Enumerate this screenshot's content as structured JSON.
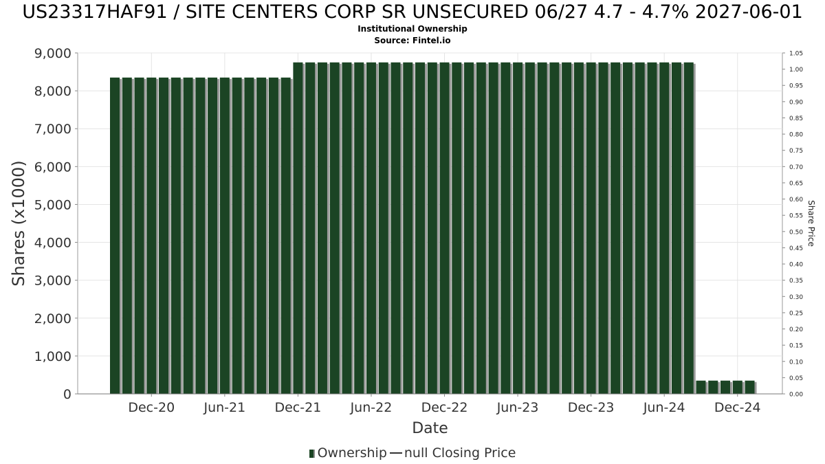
{
  "chart_data": {
    "type": "bar",
    "title": "US23317HAF91 / SITE CENTERS CORP SR UNSECURED 06/27 4.7 - 4.7% 2027-06-01",
    "subtitle": "Institutional Ownership",
    "source": "Source: Fintel.io",
    "xlabel": "Date",
    "ylabel": "Shares (x1000)",
    "y2label": "Share Price",
    "ylim": [
      0,
      9000
    ],
    "y2lim": [
      0,
      1.05
    ],
    "yticks": [
      "0",
      "1,000",
      "2,000",
      "3,000",
      "4,000",
      "5,000",
      "6,000",
      "7,000",
      "8,000",
      "9,000"
    ],
    "y2ticks": [
      "0.00",
      "0.05",
      "0.10",
      "0.15",
      "0.20",
      "0.25",
      "0.30",
      "0.35",
      "0.40",
      "0.45",
      "0.50",
      "0.55",
      "0.60",
      "0.65",
      "0.70",
      "0.75",
      "0.80",
      "0.85",
      "0.90",
      "0.95",
      "1.00",
      "1.05"
    ],
    "xticks": [
      {
        "label": "Dec-20",
        "pos": 3
      },
      {
        "label": "Jun-21",
        "pos": 9
      },
      {
        "label": "Dec-21",
        "pos": 15
      },
      {
        "label": "Jun-22",
        "pos": 21
      },
      {
        "label": "Dec-22",
        "pos": 27
      },
      {
        "label": "Jun-23",
        "pos": 33
      },
      {
        "label": "Dec-23",
        "pos": 39
      },
      {
        "label": "Jun-24",
        "pos": 45
      },
      {
        "label": "Dec-24",
        "pos": 51
      }
    ],
    "grid": true,
    "legend_position": "bottom-center",
    "series": [
      {
        "name": "Ownership",
        "color": "#1b4424",
        "values": [
          8350,
          8350,
          8350,
          8350,
          8350,
          8350,
          8350,
          8350,
          8350,
          8350,
          8350,
          8350,
          8350,
          8350,
          8350,
          8750,
          8750,
          8750,
          8750,
          8750,
          8750,
          8750,
          8750,
          8750,
          8750,
          8750,
          8750,
          8750,
          8750,
          8750,
          8750,
          8750,
          8750,
          8750,
          8750,
          8750,
          8750,
          8750,
          8750,
          8750,
          8750,
          8750,
          8750,
          8750,
          8750,
          8750,
          8750,
          8750,
          350,
          350,
          350,
          350,
          350
        ]
      }
    ],
    "legend": [
      {
        "label": "Ownership",
        "kind": "bar"
      },
      {
        "label": "null Closing Price",
        "kind": "line"
      }
    ]
  }
}
